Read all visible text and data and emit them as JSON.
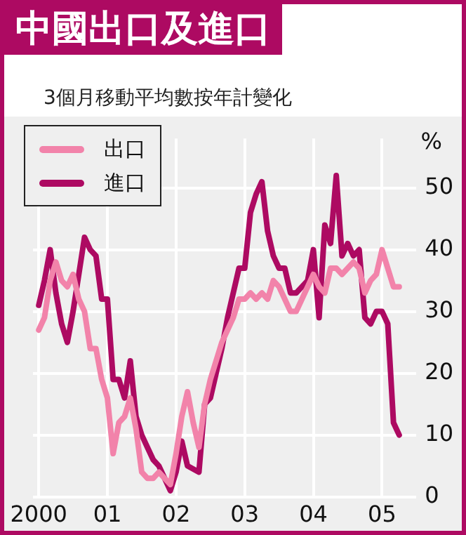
{
  "chart_data": {
    "type": "line",
    "title": "中國出口及進口",
    "subtitle": "3個月移動平均數按年計變化",
    "ylabel": "%",
    "x": [
      "2000-01",
      "2000-02",
      "2000-03",
      "2000-04",
      "2000-05",
      "2000-06",
      "2000-07",
      "2000-08",
      "2000-09",
      "2000-10",
      "2000-11",
      "2000-12",
      "2001-01",
      "2001-02",
      "2001-03",
      "2001-04",
      "2001-05",
      "2001-06",
      "2001-07",
      "2001-08",
      "2001-09",
      "2001-10",
      "2001-11",
      "2001-12",
      "2002-01",
      "2002-02",
      "2002-03",
      "2002-04",
      "2002-05",
      "2002-06",
      "2002-07",
      "2002-08",
      "2002-09",
      "2002-10",
      "2002-11",
      "2002-12",
      "2003-01",
      "2003-02",
      "2003-03",
      "2003-04",
      "2003-05",
      "2003-06",
      "2003-07",
      "2003-08",
      "2003-09",
      "2003-10",
      "2003-11",
      "2003-12",
      "2004-01",
      "2004-02",
      "2004-03",
      "2004-04",
      "2004-05",
      "2004-06",
      "2004-07",
      "2004-08",
      "2004-09",
      "2004-10",
      "2004-11",
      "2004-12",
      "2005-01",
      "2005-02",
      "2005-03",
      "2005-04"
    ],
    "series": [
      {
        "name": "出口",
        "color": "#f283aa",
        "values": [
          27,
          29,
          35,
          38,
          35,
          34,
          36,
          32,
          30,
          24,
          24,
          19,
          16,
          7,
          12,
          13,
          16,
          11,
          4,
          3,
          3,
          4,
          3,
          2,
          7,
          13,
          17,
          12,
          8,
          15,
          19,
          22,
          25,
          27,
          29,
          32,
          32,
          33,
          32,
          33,
          32,
          35,
          34,
          32,
          30,
          30,
          32,
          34,
          36,
          34,
          33,
          37,
          37,
          36,
          37,
          38,
          37,
          33,
          35,
          36,
          40,
          37,
          34,
          34
        ]
      },
      {
        "name": "進口",
        "color": "#ad0a62",
        "values": [
          31,
          35,
          40,
          33,
          28,
          25,
          30,
          36,
          42,
          40,
          39,
          32,
          32,
          19,
          19,
          16,
          22,
          13,
          10,
          8,
          6,
          5,
          3,
          1,
          4,
          9,
          5,
          4.5,
          4,
          15,
          16,
          20,
          24,
          29,
          33,
          37,
          37,
          46,
          49,
          51,
          43,
          39,
          37,
          37,
          33,
          33,
          34,
          35,
          40,
          29,
          44,
          41,
          52,
          39,
          41,
          39,
          40,
          29,
          28,
          30,
          30,
          28,
          12,
          10
        ]
      }
    ],
    "xlim": [
      "1999-12",
      "2005-07"
    ],
    "xticks": [
      {
        "value": "2000",
        "label": "2000"
      },
      {
        "value": "2001",
        "label": "01"
      },
      {
        "value": "2002",
        "label": "02"
      },
      {
        "value": "2003",
        "label": "03"
      },
      {
        "value": "2004",
        "label": "04"
      },
      {
        "value": "2005",
        "label": "05"
      }
    ],
    "ylim": [
      0,
      58
    ],
    "yticks": [
      0,
      10,
      20,
      30,
      40,
      50
    ],
    "grid": true,
    "legend": "top left",
    "marker": "none",
    "line_style": "solid"
  }
}
